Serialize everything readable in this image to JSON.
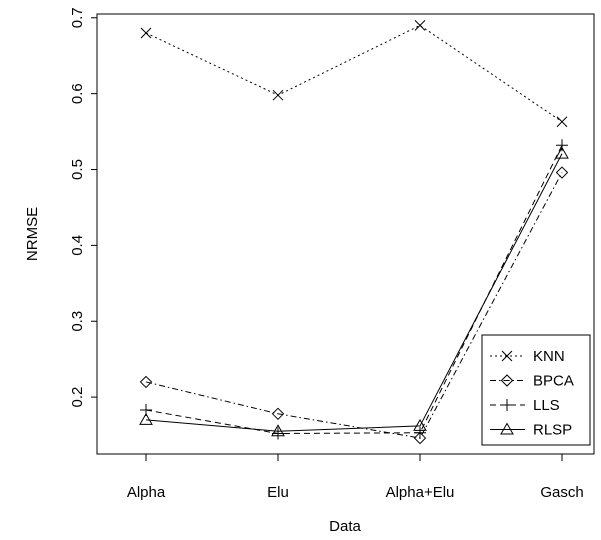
{
  "chart_data": {
    "type": "line",
    "xlabel": "Data",
    "ylabel": "NRMSE",
    "categories": [
      "Alpha",
      "Elu",
      "Alpha+Elu",
      "Gasch"
    ],
    "ylim": [
      0.125,
      0.705
    ],
    "yticks": [
      "0.2",
      "0.3",
      "0.4",
      "0.5",
      "0.6",
      "0.7"
    ],
    "grid": false,
    "legend_position": "bottom-right",
    "series": [
      {
        "name": "KNN",
        "marker": "x",
        "line_style": "dotted",
        "values": [
          0.68,
          0.598,
          0.69,
          0.563
        ]
      },
      {
        "name": "BPCA",
        "marker": "diamond",
        "line_style": "dashdot",
        "values": [
          0.22,
          0.178,
          0.146,
          0.496
        ]
      },
      {
        "name": "LLS",
        "marker": "plus",
        "line_style": "dashed",
        "values": [
          0.183,
          0.152,
          0.153,
          0.532
        ]
      },
      {
        "name": "RLSP",
        "marker": "triangle",
        "line_style": "solid",
        "values": [
          0.17,
          0.155,
          0.162,
          0.521
        ]
      }
    ]
  }
}
